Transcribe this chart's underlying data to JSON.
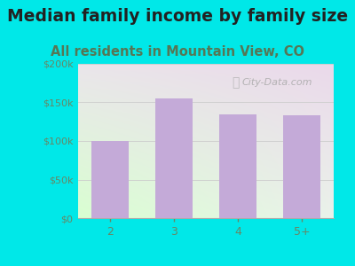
{
  "title": "Median family income by family size",
  "subtitle": "All residents in Mountain View, CO",
  "categories": [
    "2",
    "3",
    "4",
    "5+"
  ],
  "values": [
    100000,
    155000,
    135000,
    133000
  ],
  "bar_color": "#c4aad8",
  "background_color": "#00e8e8",
  "title_color": "#222222",
  "subtitle_color": "#557755",
  "tick_color": "#668866",
  "ytick_color": "#668866",
  "ylim": [
    0,
    200000
  ],
  "yticks": [
    0,
    50000,
    100000,
    150000,
    200000
  ],
  "watermark": "City-Data.com",
  "title_fontsize": 13.5,
  "subtitle_fontsize": 10.5,
  "bar_width": 0.58
}
